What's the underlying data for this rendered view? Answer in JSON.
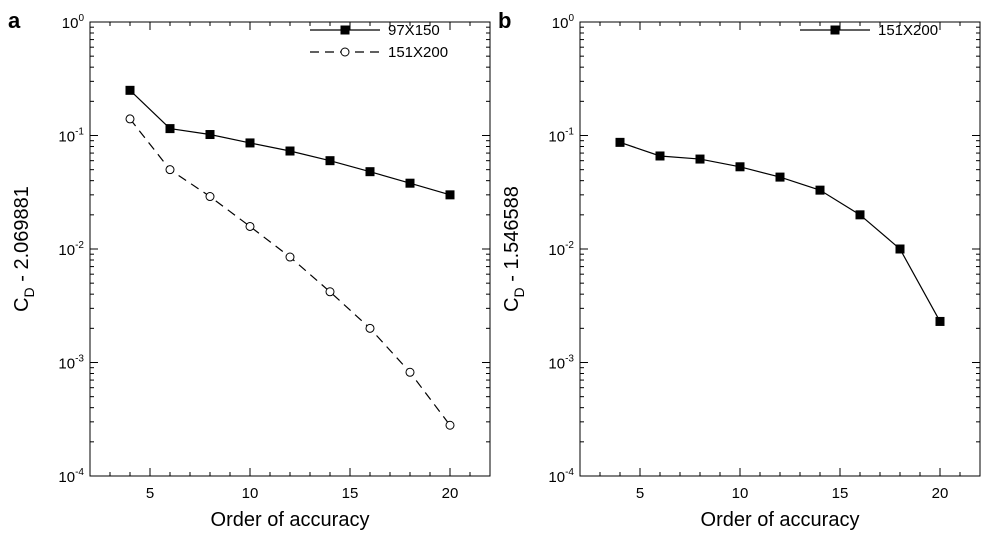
{
  "chart_data": [
    {
      "panel_label": "a",
      "type": "line",
      "xlabel": "Order of accuracy",
      "ylabel": {
        "base": "C",
        "subscript": "D",
        "rest": " - 2.069881"
      },
      "xlim": [
        2,
        22
      ],
      "ylim": [
        0.0001,
        1
      ],
      "yscale": "log",
      "xticks": [
        5,
        10,
        15,
        20
      ],
      "yticks": [
        {
          "base": "10",
          "exp": "-4"
        },
        {
          "base": "10",
          "exp": "-3"
        },
        {
          "base": "10",
          "exp": "-2"
        },
        {
          "base": "10",
          "exp": "-1"
        },
        {
          "base": "10",
          "exp": "0"
        }
      ],
      "legend_position": "top-right",
      "series": [
        {
          "name": "97X150",
          "marker": "filled-square",
          "line": "solid",
          "x": [
            4,
            6,
            8,
            10,
            12,
            14,
            16,
            18,
            20
          ],
          "y": [
            0.25,
            0.115,
            0.102,
            0.086,
            0.073,
            0.06,
            0.048,
            0.038,
            0.03
          ]
        },
        {
          "name": "151X200",
          "marker": "open-circle",
          "line": "dashed",
          "x": [
            4,
            6,
            8,
            10,
            12,
            14,
            16,
            18,
            20
          ],
          "y": [
            0.14,
            0.05,
            0.029,
            0.0158,
            0.0085,
            0.0042,
            0.002,
            0.00082,
            0.00028
          ]
        }
      ]
    },
    {
      "panel_label": "b",
      "type": "line",
      "xlabel": "Order of accuracy",
      "ylabel": {
        "base": "C",
        "subscript": "D",
        "rest": " - 1.546588"
      },
      "xlim": [
        2,
        22
      ],
      "ylim": [
        0.0001,
        1
      ],
      "yscale": "log",
      "xticks": [
        5,
        10,
        15,
        20
      ],
      "yticks": [
        {
          "base": "10",
          "exp": "-4"
        },
        {
          "base": "10",
          "exp": "-3"
        },
        {
          "base": "10",
          "exp": "-2"
        },
        {
          "base": "10",
          "exp": "-1"
        },
        {
          "base": "10",
          "exp": "0"
        }
      ],
      "legend_position": "top-right",
      "series": [
        {
          "name": "151X200",
          "marker": "filled-square",
          "line": "solid",
          "x": [
            4,
            6,
            8,
            10,
            12,
            14,
            16,
            18,
            20
          ],
          "y": [
            0.087,
            0.066,
            0.062,
            0.053,
            0.043,
            0.033,
            0.02,
            0.01,
            0.0023
          ]
        }
      ]
    }
  ]
}
